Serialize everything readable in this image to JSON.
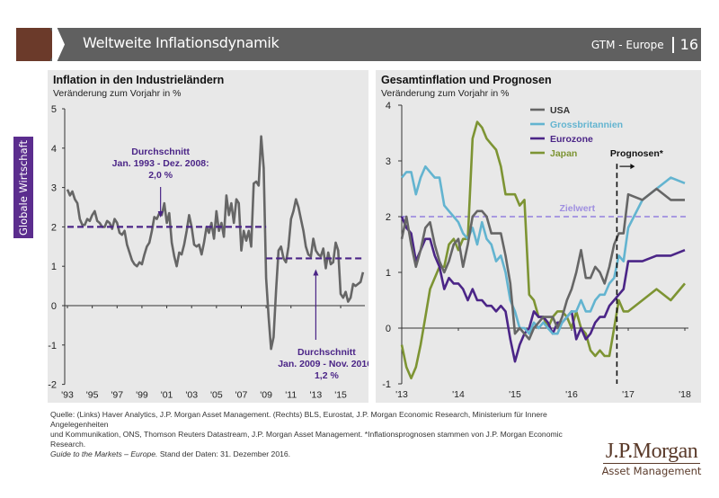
{
  "header": {
    "title": "Weltweite Inflationsdynamik",
    "series_label": "GTM - Europe",
    "page_number": "16"
  },
  "side_tab": {
    "label": "Globale Wirtschaft"
  },
  "colors": {
    "header_bg": "#606060",
    "chevron": "#6b3a2a",
    "side_tab": "#5b2d8e",
    "panel_bg": "#e8e8e8",
    "average_line": "#4b2587",
    "target_line": "#9f8fe0",
    "usa": "#666666",
    "uk": "#63b4d0",
    "eurozone": "#4b2587",
    "japan": "#7d9433"
  },
  "chart_data": [
    {
      "type": "line",
      "title": "Inflation in den Industrieländern",
      "subtitle": "Veränderung zum Vorjahr in %",
      "xlabel": "",
      "ylabel": "",
      "ylim": [
        -2,
        5
      ],
      "yticks": [
        5,
        4,
        3,
        2,
        1,
        0,
        -1,
        -2
      ],
      "xlim": [
        1993,
        2016.95
      ],
      "xticks": [
        1993,
        1995,
        1997,
        1999,
        2001,
        2003,
        2005,
        2007,
        2009,
        2011,
        2013,
        2015
      ],
      "xtick_labels": [
        "'93",
        "'95",
        "'97",
        "'99",
        "'01",
        "'03",
        "'05",
        "'07",
        "'09",
        "'11",
        "'13",
        "'15"
      ],
      "grid": false,
      "series": [
        {
          "name": "Inflation Industrieländer",
          "color": "#666666",
          "x": [
            1993.0,
            1993.2,
            1993.4,
            1993.6,
            1993.8,
            1994.0,
            1994.2,
            1994.4,
            1994.6,
            1994.8,
            1995.0,
            1995.2,
            1995.4,
            1995.6,
            1995.8,
            1996.0,
            1996.2,
            1996.4,
            1996.6,
            1996.8,
            1997.0,
            1997.2,
            1997.4,
            1997.6,
            1997.8,
            1998.0,
            1998.2,
            1998.4,
            1998.6,
            1998.8,
            1999.0,
            1999.2,
            1999.4,
            1999.6,
            1999.8,
            2000.0,
            2000.2,
            2000.4,
            2000.6,
            2000.8,
            2001.0,
            2001.2,
            2001.4,
            2001.6,
            2001.8,
            2002.0,
            2002.2,
            2002.4,
            2002.6,
            2002.8,
            2003.0,
            2003.2,
            2003.4,
            2003.6,
            2003.8,
            2004.0,
            2004.2,
            2004.4,
            2004.6,
            2004.8,
            2005.0,
            2005.2,
            2005.4,
            2005.6,
            2005.8,
            2006.0,
            2006.2,
            2006.4,
            2006.6,
            2006.8,
            2007.0,
            2007.2,
            2007.4,
            2007.6,
            2007.8,
            2008.0,
            2008.2,
            2008.4,
            2008.6,
            2008.8,
            2009.0,
            2009.2,
            2009.4,
            2009.6,
            2009.8,
            2010.0,
            2010.2,
            2010.4,
            2010.6,
            2010.8,
            2011.0,
            2011.2,
            2011.4,
            2011.6,
            2011.8,
            2012.0,
            2012.2,
            2012.4,
            2012.6,
            2012.8,
            2013.0,
            2013.2,
            2013.4,
            2013.6,
            2013.8,
            2014.0,
            2014.2,
            2014.4,
            2014.6,
            2014.8,
            2015.0,
            2015.2,
            2015.4,
            2015.6,
            2015.8,
            2016.0,
            2016.2,
            2016.4,
            2016.6,
            2016.8
          ],
          "values": [
            2.95,
            2.8,
            2.9,
            2.7,
            2.6,
            2.2,
            2.05,
            2.05,
            2.2,
            2.15,
            2.3,
            2.4,
            2.15,
            2.1,
            2.0,
            2.0,
            2.15,
            2.1,
            1.95,
            2.2,
            2.1,
            1.85,
            1.8,
            1.9,
            1.55,
            1.35,
            1.15,
            1.05,
            1.0,
            1.1,
            1.05,
            1.3,
            1.5,
            1.6,
            1.9,
            2.25,
            2.2,
            2.35,
            2.3,
            2.6,
            2.1,
            2.35,
            1.6,
            1.25,
            1.0,
            1.35,
            1.3,
            1.55,
            1.9,
            2.3,
            2.0,
            1.55,
            1.5,
            1.55,
            1.3,
            1.6,
            2.0,
            1.85,
            2.1,
            1.7,
            2.4,
            1.9,
            2.1,
            1.75,
            2.8,
            2.3,
            2.6,
            2.1,
            2.7,
            2.6,
            1.4,
            1.9,
            1.65,
            1.9,
            1.5,
            3.1,
            3.15,
            3.05,
            4.3,
            3.5,
            0.7,
            -0.3,
            -1.1,
            -0.8,
            0.4,
            1.4,
            1.5,
            1.2,
            1.1,
            1.5,
            2.2,
            2.4,
            2.7,
            2.5,
            2.2,
            1.9,
            1.5,
            1.3,
            1.25,
            1.7,
            1.4,
            1.3,
            1.25,
            1.45,
            0.95,
            1.35,
            1.05,
            1.1,
            1.6,
            1.4,
            0.3,
            0.2,
            0.35,
            0.1,
            0.2,
            0.55,
            0.5,
            0.55,
            0.6,
            0.85
          ]
        }
      ],
      "reference_lines": [
        {
          "label": "Durchschnitt Jan. 1993 - Dez. 2008",
          "value": 2.0,
          "x_range": [
            1993,
            2009.0
          ]
        },
        {
          "label": "Durchschnitt Jan. 2009 - Nov. 2016",
          "value": 1.2,
          "x_range": [
            2009.0,
            2016.95
          ]
        }
      ],
      "annotations": [
        {
          "lines": [
            "Durchschnitt",
            "Jan. 1993 - Dez. 2008:",
            "2,0 %"
          ],
          "arrow_x": 2000.5,
          "direction": "down"
        },
        {
          "lines": [
            "Durchschnitt",
            "Jan. 2009 - Nov. 2016:",
            "1,2 %"
          ],
          "arrow_x": 2013.0,
          "direction": "up"
        }
      ]
    },
    {
      "type": "line",
      "title": "Gesamtinflation und Prognosen",
      "subtitle": "Veränderung zum Vorjahr in %",
      "xlabel": "",
      "ylabel": "",
      "ylim": [
        -1,
        4
      ],
      "yticks": [
        4,
        3,
        2,
        1,
        0,
        -1
      ],
      "xlim": [
        2013,
        2018
      ],
      "xticks": [
        2013,
        2014,
        2015,
        2016,
        2017,
        2018
      ],
      "xtick_labels": [
        "'13",
        "'14",
        "'15",
        "'16",
        "'17",
        "'18"
      ],
      "grid": false,
      "legend": {
        "placement": "top-right",
        "entries": [
          "USA",
          "Grossbritannien",
          "Eurozone",
          "Japan"
        ]
      },
      "target": {
        "label": "Zielwert",
        "value": 2.0
      },
      "forecast": {
        "label": "Prognosen*",
        "start_x": 2016.8
      },
      "series": [
        {
          "name": "USA",
          "color": "#666666",
          "x": [
            2013.0,
            2013.083,
            2013.167,
            2013.25,
            2013.333,
            2013.417,
            2013.5,
            2013.583,
            2013.667,
            2013.75,
            2013.833,
            2013.917,
            2014.0,
            2014.083,
            2014.167,
            2014.25,
            2014.333,
            2014.417,
            2014.5,
            2014.583,
            2014.667,
            2014.75,
            2014.833,
            2014.917,
            2015.0,
            2015.083,
            2015.167,
            2015.25,
            2015.333,
            2015.417,
            2015.5,
            2015.583,
            2015.667,
            2015.75,
            2015.833,
            2015.917,
            2016.0,
            2016.083,
            2016.167,
            2016.25,
            2016.333,
            2016.417,
            2016.5,
            2016.583,
            2016.667,
            2016.75,
            2016.833,
            2016.917,
            2017.0,
            2017.25,
            2017.5,
            2017.75,
            2018.0
          ],
          "values": [
            1.6,
            2.0,
            1.5,
            1.1,
            1.4,
            1.8,
            1.9,
            1.5,
            1.2,
            1.0,
            1.2,
            1.5,
            1.6,
            1.1,
            1.5,
            2.0,
            2.1,
            2.1,
            2.0,
            1.7,
            1.7,
            1.7,
            1.3,
            0.8,
            -0.1,
            0.0,
            -0.1,
            -0.2,
            0.0,
            0.1,
            0.2,
            0.2,
            0.2,
            0.0,
            0.2,
            0.5,
            0.7,
            1.0,
            1.4,
            0.9,
            0.9,
            1.1,
            1.0,
            0.8,
            1.1,
            1.5,
            1.7,
            1.7,
            2.4,
            2.3,
            2.5,
            2.3,
            2.3
          ]
        },
        {
          "name": "Grossbritannien",
          "color": "#63b4d0",
          "x": [
            2013.0,
            2013.083,
            2013.167,
            2013.25,
            2013.333,
            2013.417,
            2013.5,
            2013.583,
            2013.667,
            2013.75,
            2013.833,
            2013.917,
            2014.0,
            2014.083,
            2014.167,
            2014.25,
            2014.333,
            2014.417,
            2014.5,
            2014.583,
            2014.667,
            2014.75,
            2014.833,
            2014.917,
            2015.0,
            2015.083,
            2015.167,
            2015.25,
            2015.333,
            2015.417,
            2015.5,
            2015.583,
            2015.667,
            2015.75,
            2015.833,
            2015.917,
            2016.0,
            2016.083,
            2016.167,
            2016.25,
            2016.333,
            2016.417,
            2016.5,
            2016.583,
            2016.667,
            2016.75,
            2016.833,
            2016.917,
            2017.0,
            2017.25,
            2017.5,
            2017.75,
            2018.0
          ],
          "values": [
            2.7,
            2.8,
            2.8,
            2.4,
            2.7,
            2.9,
            2.8,
            2.7,
            2.7,
            2.2,
            2.1,
            2.0,
            1.9,
            1.7,
            1.6,
            1.8,
            1.5,
            1.9,
            1.6,
            1.5,
            1.2,
            1.3,
            1.0,
            0.5,
            0.3,
            0.0,
            0.0,
            -0.1,
            0.1,
            0.0,
            0.1,
            0.0,
            -0.1,
            -0.1,
            0.1,
            0.2,
            0.3,
            0.3,
            0.5,
            0.3,
            0.3,
            0.5,
            0.6,
            0.6,
            0.8,
            0.9,
            1.3,
            1.2,
            1.8,
            2.3,
            2.5,
            2.7,
            2.6
          ]
        },
        {
          "name": "Eurozone",
          "color": "#4b2587",
          "x": [
            2013.0,
            2013.083,
            2013.167,
            2013.25,
            2013.333,
            2013.417,
            2013.5,
            2013.583,
            2013.667,
            2013.75,
            2013.833,
            2013.917,
            2014.0,
            2014.083,
            2014.167,
            2014.25,
            2014.333,
            2014.417,
            2014.5,
            2014.583,
            2014.667,
            2014.75,
            2014.833,
            2014.917,
            2015.0,
            2015.083,
            2015.167,
            2015.25,
            2015.333,
            2015.417,
            2015.5,
            2015.583,
            2015.667,
            2015.75,
            2015.833,
            2015.917,
            2016.0,
            2016.083,
            2016.167,
            2016.25,
            2016.333,
            2016.417,
            2016.5,
            2016.583,
            2016.667,
            2016.75,
            2016.833,
            2016.917,
            2017.0,
            2017.25,
            2017.5,
            2017.75,
            2018.0
          ],
          "values": [
            2.0,
            1.8,
            1.7,
            1.2,
            1.4,
            1.6,
            1.6,
            1.3,
            1.1,
            0.7,
            0.9,
            0.8,
            0.8,
            0.7,
            0.5,
            0.7,
            0.5,
            0.5,
            0.4,
            0.4,
            0.3,
            0.4,
            0.3,
            -0.2,
            -0.6,
            -0.3,
            -0.1,
            0.0,
            0.3,
            0.2,
            0.2,
            0.1,
            -0.1,
            0.1,
            0.1,
            0.2,
            0.3,
            -0.2,
            0.0,
            -0.2,
            -0.1,
            0.1,
            0.2,
            0.2,
            0.4,
            0.5,
            0.6,
            0.7,
            1.2,
            1.2,
            1.3,
            1.3,
            1.4
          ]
        },
        {
          "name": "Japan",
          "color": "#7d9433",
          "x": [
            2013.0,
            2013.083,
            2013.167,
            2013.25,
            2013.333,
            2013.417,
            2013.5,
            2013.583,
            2013.667,
            2013.75,
            2013.833,
            2013.917,
            2014.0,
            2014.083,
            2014.167,
            2014.25,
            2014.333,
            2014.417,
            2014.5,
            2014.583,
            2014.667,
            2014.75,
            2014.833,
            2014.917,
            2015.0,
            2015.083,
            2015.167,
            2015.25,
            2015.333,
            2015.417,
            2015.5,
            2015.583,
            2015.667,
            2015.75,
            2015.833,
            2015.917,
            2016.0,
            2016.083,
            2016.167,
            2016.25,
            2016.333,
            2016.417,
            2016.5,
            2016.583,
            2016.667,
            2016.75,
            2016.833,
            2016.917,
            2017.0,
            2017.25,
            2017.5,
            2017.75,
            2018.0
          ],
          "values": [
            -0.3,
            -0.7,
            -0.9,
            -0.7,
            -0.3,
            0.2,
            0.7,
            0.9,
            1.1,
            1.1,
            1.5,
            1.6,
            1.4,
            1.6,
            1.6,
            3.4,
            3.7,
            3.6,
            3.4,
            3.3,
            3.2,
            2.9,
            2.4,
            2.4,
            2.4,
            2.2,
            2.3,
            0.6,
            0.5,
            0.2,
            0.2,
            0.0,
            0.2,
            0.3,
            0.3,
            0.2,
            0.0,
            0.3,
            0.0,
            -0.1,
            -0.4,
            -0.5,
            -0.4,
            -0.5,
            -0.5,
            0.0,
            0.5,
            0.3,
            0.3,
            0.5,
            0.7,
            0.5,
            0.8
          ]
        }
      ]
    }
  ],
  "footer": {
    "source_line1": "Quelle: (Links) Haver Analytics, J.P. Morgan Asset Management. (Rechts) BLS, Eurostat, J.P. Morgan Economic Research, Ministerium für Innere Angelegenheiten",
    "source_line2": "und Kommunikation, ONS, Thomson Reuters Datastream, J.P. Morgan Asset Management. *Inflationsprognosen stammen von J.P. Morgan Economic Research.",
    "guide_italic": "Guide to the Markets – Europe.",
    "data_date": " Stand der Daten: 31. Dezember 2016."
  },
  "logo": {
    "name": "J.P.Morgan",
    "subtitle": "Asset Management"
  }
}
